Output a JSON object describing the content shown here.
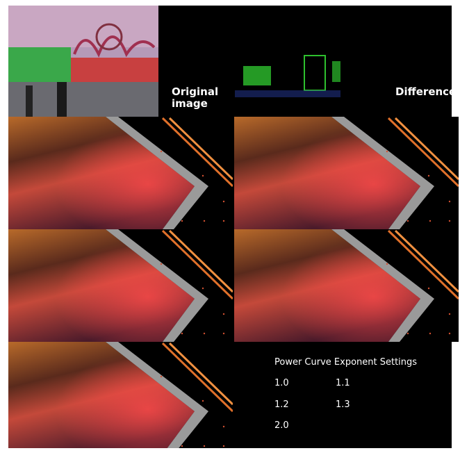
{
  "labels": {
    "original": "Original image",
    "difference": "Difference"
  },
  "settings": {
    "title": "Power Curve Exponent Settings",
    "values": [
      "1.0",
      "1.1",
      "1.2",
      "1.3",
      "2.0"
    ]
  }
}
